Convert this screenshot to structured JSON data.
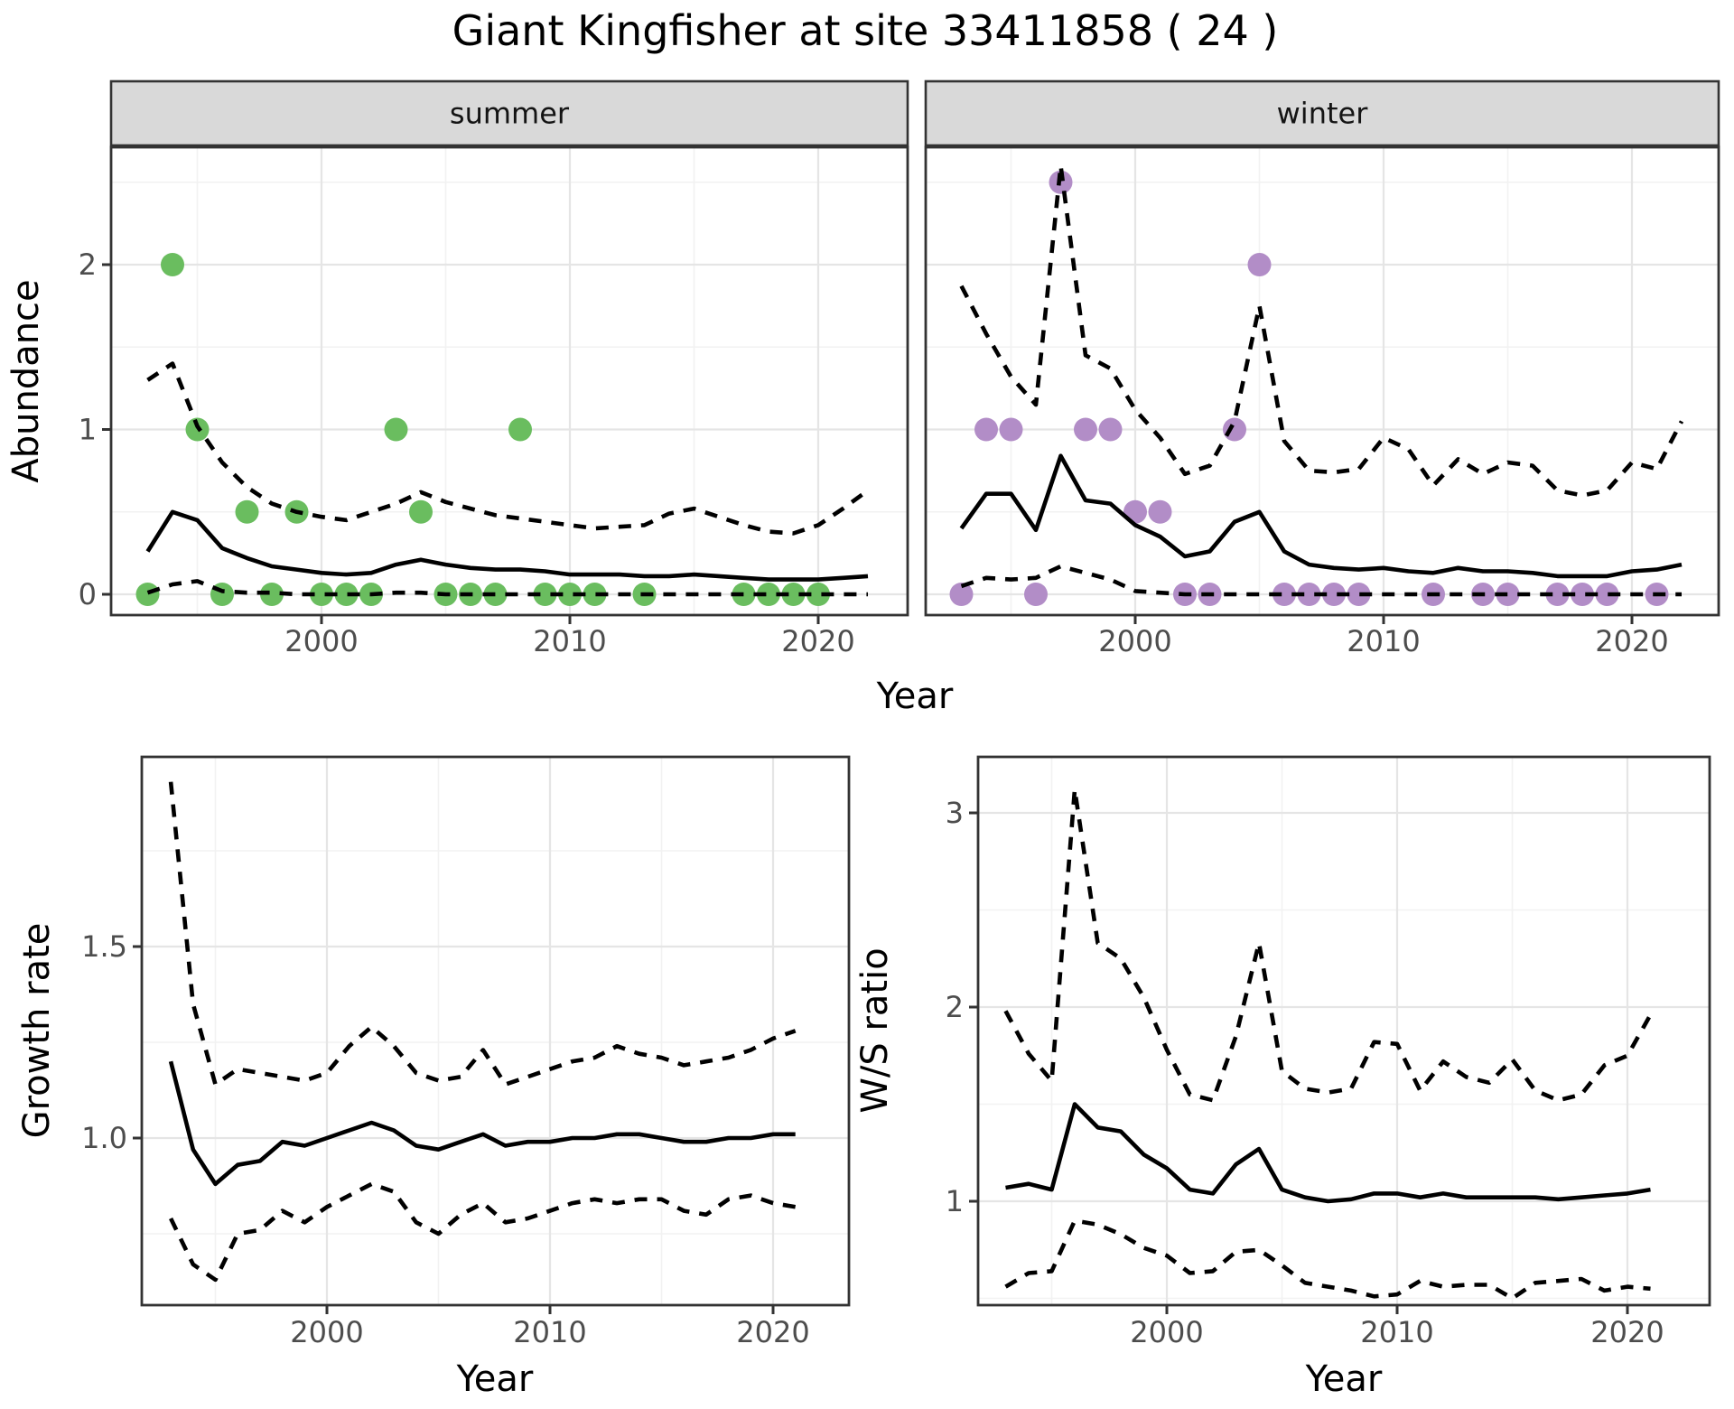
{
  "title": "Giant Kingfisher at site 33411858 ( 24 )",
  "top_row": {
    "xlabel": "Year",
    "ylabel": "Abundance"
  },
  "colors": {
    "summer_points": "#6abd5f",
    "winter_points": "#b28dc7",
    "line": "#000000",
    "strip_bg": "#d9d9d9",
    "panel_border": "#333333",
    "grid_major": "#e5e5e5",
    "grid_minor": "#f2f2f2",
    "tick_text": "#4d4d4d",
    "tick_mark": "#333333"
  },
  "chart_data": [
    {
      "id": "abundance-summer",
      "type": "line",
      "facet_label": "summer",
      "xlabel": "Year",
      "ylabel": "Abundance",
      "xlim": [
        1991.6,
        2023.6
      ],
      "ylim": [
        -0.13,
        2.71
      ],
      "grid": true,
      "legend": "none",
      "xticks": [
        2000,
        2010,
        2020
      ],
      "xtick_labels": [
        "2000",
        "2010",
        "2020"
      ],
      "xticks_minor": [
        1995,
        2005,
        2015
      ],
      "yticks": [
        0,
        1,
        2
      ],
      "ytick_labels": [
        "0",
        "1",
        "2"
      ],
      "yticks_minor": [
        0.5,
        1.5,
        2.5
      ],
      "points": {
        "name": "observed-abundance",
        "color": "#6abd5f",
        "years": [
          1993,
          1994,
          1995,
          1996,
          1997,
          1998,
          1999,
          2000,
          2001,
          2002,
          2003,
          2004,
          2005,
          2006,
          2007,
          2008,
          2009,
          2010,
          2011,
          2013,
          2017,
          2018,
          2019,
          2020
        ],
        "values": [
          0,
          2,
          1,
          0,
          0.5,
          0,
          0.5,
          0,
          0,
          0,
          1,
          0.5,
          0,
          0,
          0,
          1,
          0,
          0,
          0,
          0,
          0,
          0,
          0,
          0
        ]
      },
      "series": [
        {
          "name": "model-median",
          "style": "solid",
          "years": [
            1993,
            1994,
            1995,
            1996,
            1997,
            1998,
            1999,
            2000,
            2001,
            2002,
            2003,
            2004,
            2005,
            2006,
            2007,
            2008,
            2009,
            2010,
            2011,
            2012,
            2013,
            2014,
            2015,
            2016,
            2017,
            2018,
            2019,
            2020,
            2021,
            2022
          ],
          "values": [
            0.26,
            0.5,
            0.45,
            0.28,
            0.22,
            0.17,
            0.15,
            0.13,
            0.12,
            0.13,
            0.18,
            0.21,
            0.18,
            0.16,
            0.15,
            0.15,
            0.14,
            0.12,
            0.12,
            0.12,
            0.11,
            0.11,
            0.12,
            0.11,
            0.1,
            0.09,
            0.09,
            0.09,
            0.1,
            0.11
          ]
        },
        {
          "name": "upper-ci",
          "style": "dashed",
          "years": [
            1993,
            1994,
            1995,
            1996,
            1997,
            1998,
            1999,
            2000,
            2001,
            2002,
            2003,
            2004,
            2005,
            2006,
            2007,
            2008,
            2009,
            2010,
            2011,
            2012,
            2013,
            2014,
            2015,
            2016,
            2017,
            2018,
            2019,
            2020,
            2021,
            2022
          ],
          "values": [
            1.3,
            1.4,
            1.02,
            0.8,
            0.65,
            0.55,
            0.5,
            0.47,
            0.45,
            0.5,
            0.55,
            0.62,
            0.56,
            0.52,
            0.48,
            0.46,
            0.44,
            0.42,
            0.4,
            0.41,
            0.42,
            0.49,
            0.52,
            0.47,
            0.42,
            0.38,
            0.37,
            0.42,
            0.52,
            0.63
          ]
        },
        {
          "name": "lower-ci",
          "style": "dashed",
          "years": [
            1993,
            1994,
            1995,
            1996,
            1997,
            1998,
            1999,
            2000,
            2001,
            2002,
            2003,
            2004,
            2005,
            2006,
            2007,
            2008,
            2009,
            2010,
            2011,
            2012,
            2013,
            2014,
            2015,
            2016,
            2017,
            2018,
            2019,
            2020,
            2021,
            2022
          ],
          "values": [
            0.01,
            0.06,
            0.08,
            0.02,
            0.01,
            0.01,
            0,
            0,
            0,
            0,
            0.01,
            0.01,
            0,
            0,
            0,
            0,
            0,
            0,
            0,
            0,
            0,
            0,
            0,
            0,
            0,
            0,
            0,
            0,
            0,
            0
          ]
        }
      ]
    },
    {
      "id": "abundance-winter",
      "type": "line",
      "facet_label": "winter",
      "xlabel": "Year",
      "ylabel": "Abundance",
      "xlim": [
        1991.6,
        2023.6
      ],
      "ylim": [
        -0.13,
        2.71
      ],
      "grid": true,
      "legend": "none",
      "xticks": [
        2000,
        2010,
        2020
      ],
      "xtick_labels": [
        "2000",
        "2010",
        "2020"
      ],
      "xticks_minor": [
        1995,
        2005,
        2015
      ],
      "yticks": [
        0,
        1,
        2
      ],
      "ytick_labels": [
        "0",
        "1",
        "2"
      ],
      "yticks_minor": [
        0.5,
        1.5,
        2.5
      ],
      "points": {
        "name": "observed-abundance",
        "color": "#b28dc7",
        "years": [
          1993,
          1994,
          1995,
          1996,
          1997,
          1998,
          1999,
          2000,
          2001,
          2002,
          2003,
          2004,
          2005,
          2006,
          2007,
          2008,
          2009,
          2012,
          2014,
          2015,
          2017,
          2018,
          2019,
          2021
        ],
        "values": [
          0,
          1,
          1,
          0,
          2.5,
          1,
          1,
          0.5,
          0.5,
          0,
          0,
          1,
          2,
          0,
          0,
          0,
          0,
          0,
          0,
          0,
          0,
          0,
          0,
          0
        ]
      },
      "series": [
        {
          "name": "model-median",
          "style": "solid",
          "years": [
            1993,
            1994,
            1995,
            1996,
            1997,
            1998,
            1999,
            2000,
            2001,
            2002,
            2003,
            2004,
            2005,
            2006,
            2007,
            2008,
            2009,
            2010,
            2011,
            2012,
            2013,
            2014,
            2015,
            2016,
            2017,
            2018,
            2019,
            2020,
            2021,
            2022
          ],
          "values": [
            0.4,
            0.61,
            0.61,
            0.39,
            0.84,
            0.57,
            0.55,
            0.42,
            0.35,
            0.23,
            0.26,
            0.44,
            0.5,
            0.26,
            0.18,
            0.16,
            0.15,
            0.16,
            0.14,
            0.13,
            0.16,
            0.14,
            0.14,
            0.13,
            0.11,
            0.11,
            0.11,
            0.14,
            0.15,
            0.18
          ]
        },
        {
          "name": "upper-ci",
          "style": "dashed",
          "years": [
            1993,
            1994,
            1995,
            1996,
            1997,
            1998,
            1999,
            2000,
            2001,
            2002,
            2003,
            2004,
            2005,
            2006,
            2007,
            2008,
            2009,
            2010,
            2011,
            2012,
            2013,
            2014,
            2015,
            2016,
            2017,
            2018,
            2019,
            2020,
            2021,
            2022
          ],
          "values": [
            1.87,
            1.58,
            1.32,
            1.15,
            2.6,
            1.45,
            1.37,
            1.12,
            0.95,
            0.73,
            0.78,
            1.05,
            1.75,
            0.93,
            0.75,
            0.74,
            0.76,
            0.95,
            0.88,
            0.66,
            0.82,
            0.73,
            0.8,
            0.78,
            0.63,
            0.6,
            0.63,
            0.8,
            0.76,
            1.05
          ]
        },
        {
          "name": "lower-ci",
          "style": "dashed",
          "years": [
            1993,
            1994,
            1995,
            1996,
            1997,
            1998,
            1999,
            2000,
            2001,
            2002,
            2003,
            2004,
            2005,
            2006,
            2007,
            2008,
            2009,
            2010,
            2011,
            2012,
            2013,
            2014,
            2015,
            2016,
            2017,
            2018,
            2019,
            2020,
            2021,
            2022
          ],
          "values": [
            0.05,
            0.1,
            0.09,
            0.1,
            0.17,
            0.13,
            0.09,
            0.02,
            0.01,
            0,
            0,
            0,
            0,
            0,
            0,
            0,
            0,
            0,
            0,
            0,
            0,
            0,
            0,
            0,
            0,
            0,
            0,
            0,
            0,
            0
          ]
        }
      ]
    },
    {
      "id": "growth-rate",
      "type": "line",
      "xlabel": "Year",
      "ylabel": "Growth rate",
      "xlim": [
        1991.6,
        2023.4
      ],
      "ylim": [
        0.56,
        1.99
      ],
      "grid": true,
      "legend": "none",
      "xticks": [
        2000,
        2010,
        2020
      ],
      "xtick_labels": [
        "2000",
        "2010",
        "2020"
      ],
      "xticks_minor": [
        1995,
        2005,
        2015
      ],
      "yticks": [
        1.0,
        1.5
      ],
      "ytick_labels": [
        "1.0",
        "1.5"
      ],
      "yticks_minor": [
        0.75,
        1.25,
        1.75
      ],
      "series": [
        {
          "name": "model-median",
          "style": "solid",
          "years": [
            1993,
            1994,
            1995,
            1996,
            1997,
            1998,
            1999,
            2000,
            2001,
            2002,
            2003,
            2004,
            2005,
            2006,
            2007,
            2008,
            2009,
            2010,
            2011,
            2012,
            2013,
            2014,
            2015,
            2016,
            2017,
            2018,
            2019,
            2020,
            2021
          ],
          "values": [
            1.2,
            0.97,
            0.88,
            0.93,
            0.94,
            0.99,
            0.98,
            1.0,
            1.02,
            1.04,
            1.02,
            0.98,
            0.97,
            0.99,
            1.01,
            0.98,
            0.99,
            0.99,
            1.0,
            1.0,
            1.01,
            1.01,
            1.0,
            0.99,
            0.99,
            1.0,
            1.0,
            1.01,
            1.01
          ]
        },
        {
          "name": "upper-ci",
          "style": "dashed",
          "years": [
            1993,
            1994,
            1995,
            1996,
            1997,
            1998,
            1999,
            2000,
            2001,
            2002,
            2003,
            2004,
            2005,
            2006,
            2007,
            2008,
            2009,
            2010,
            2011,
            2012,
            2013,
            2014,
            2015,
            2016,
            2017,
            2018,
            2019,
            2020,
            2021
          ],
          "values": [
            1.93,
            1.35,
            1.14,
            1.18,
            1.17,
            1.16,
            1.15,
            1.17,
            1.24,
            1.29,
            1.24,
            1.17,
            1.15,
            1.16,
            1.23,
            1.14,
            1.16,
            1.18,
            1.2,
            1.21,
            1.24,
            1.22,
            1.21,
            1.19,
            1.2,
            1.21,
            1.23,
            1.26,
            1.28
          ]
        },
        {
          "name": "lower-ci",
          "style": "dashed",
          "years": [
            1993,
            1994,
            1995,
            1996,
            1997,
            1998,
            1999,
            2000,
            2001,
            2002,
            2003,
            2004,
            2005,
            2006,
            2007,
            2008,
            2009,
            2010,
            2011,
            2012,
            2013,
            2014,
            2015,
            2016,
            2017,
            2018,
            2019,
            2020,
            2021
          ],
          "values": [
            0.79,
            0.67,
            0.63,
            0.75,
            0.76,
            0.81,
            0.78,
            0.82,
            0.85,
            0.88,
            0.86,
            0.78,
            0.75,
            0.8,
            0.83,
            0.78,
            0.79,
            0.81,
            0.83,
            0.84,
            0.83,
            0.84,
            0.84,
            0.81,
            0.8,
            0.84,
            0.85,
            0.83,
            0.82
          ]
        }
      ]
    },
    {
      "id": "ws-ratio",
      "type": "line",
      "xlabel": "Year",
      "ylabel": "W/S ratio",
      "xlim": [
        1991.8,
        2023.6
      ],
      "ylim": [
        0.4,
        3.28
      ],
      "grid": true,
      "legend": "none",
      "xticks": [
        2000,
        2010,
        2020
      ],
      "xtick_labels": [
        "2000",
        "2010",
        "2020"
      ],
      "xticks_minor": [
        1995,
        2005,
        2015
      ],
      "yticks": [
        1,
        2,
        3
      ],
      "ytick_labels": [
        "1",
        "2",
        "3"
      ],
      "yticks_minor": [
        0.5,
        1.5,
        2.5
      ],
      "series": [
        {
          "name": "model-median",
          "style": "solid",
          "years": [
            1993,
            1994,
            1995,
            1996,
            1997,
            1998,
            1999,
            2000,
            2001,
            2002,
            2003,
            2004,
            2005,
            2006,
            2007,
            2008,
            2009,
            2010,
            2011,
            2012,
            2013,
            2014,
            2015,
            2016,
            2017,
            2018,
            2019,
            2020,
            2021
          ],
          "values": [
            1.07,
            1.09,
            1.06,
            1.5,
            1.38,
            1.36,
            1.24,
            1.17,
            1.06,
            1.04,
            1.19,
            1.27,
            1.06,
            1.02,
            1.0,
            1.01,
            1.04,
            1.04,
            1.02,
            1.04,
            1.02,
            1.02,
            1.02,
            1.02,
            1.01,
            1.02,
            1.03,
            1.04,
            1.06
          ]
        },
        {
          "name": "upper-ci",
          "style": "dashed",
          "years": [
            1993,
            1994,
            1995,
            1996,
            1997,
            1998,
            1999,
            2000,
            2001,
            2002,
            2003,
            2004,
            2005,
            2006,
            2007,
            2008,
            2009,
            2010,
            2011,
            2012,
            2013,
            2014,
            2015,
            2016,
            2017,
            2018,
            2019,
            2020,
            2021
          ],
          "values": [
            1.98,
            1.76,
            1.62,
            3.12,
            2.33,
            2.25,
            2.05,
            1.78,
            1.55,
            1.52,
            1.85,
            2.33,
            1.67,
            1.58,
            1.56,
            1.58,
            1.82,
            1.81,
            1.57,
            1.72,
            1.64,
            1.61,
            1.73,
            1.57,
            1.52,
            1.55,
            1.7,
            1.75,
            1.96
          ]
        },
        {
          "name": "lower-ci",
          "style": "dashed",
          "years": [
            1993,
            1994,
            1995,
            1996,
            1997,
            1998,
            1999,
            2000,
            2001,
            2002,
            2003,
            2004,
            2005,
            2006,
            2007,
            2008,
            2009,
            2010,
            2011,
            2012,
            2013,
            2014,
            2015,
            2016,
            2017,
            2018,
            2019,
            2020,
            2021
          ],
          "values": [
            0.56,
            0.63,
            0.64,
            0.9,
            0.88,
            0.83,
            0.76,
            0.72,
            0.63,
            0.64,
            0.74,
            0.75,
            0.67,
            0.58,
            0.56,
            0.54,
            0.51,
            0.52,
            0.59,
            0.56,
            0.57,
            0.57,
            0.5,
            0.58,
            0.59,
            0.6,
            0.54,
            0.56,
            0.55
          ]
        }
      ]
    }
  ]
}
